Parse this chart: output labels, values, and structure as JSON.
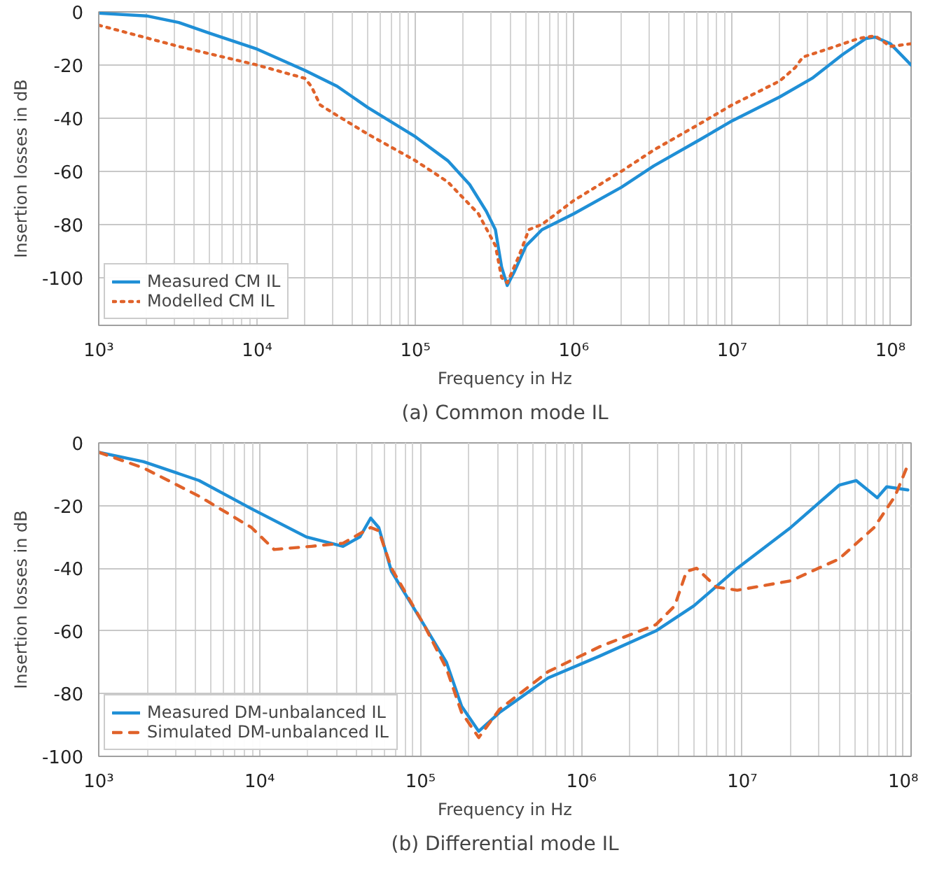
{
  "chart_data": [
    {
      "type": "line",
      "title": "(a) Common mode IL",
      "xlabel": "Frequency in Hz",
      "ylabel": "Insertion losses in dB",
      "log": "x",
      "grid": true,
      "legend": "bottom left",
      "xlim": [
        1000,
        135000000
      ],
      "ylim": [
        -118,
        0
      ],
      "xticks": [
        {
          "value": 1000,
          "label": "10³"
        },
        {
          "value": 10000,
          "label": "10⁴"
        },
        {
          "value": 100000,
          "label": "10⁵"
        },
        {
          "value": 1000000,
          "label": "10⁶"
        },
        {
          "value": 10000000,
          "label": "10⁷"
        },
        {
          "value": 100000000,
          "label": "10⁸"
        }
      ],
      "yticks": [
        0,
        -20,
        -40,
        -60,
        -80,
        -100
      ],
      "series": [
        {
          "name": "Measured CM IL",
          "color": "#1f8fd6",
          "line_style": "solid",
          "x": [
            1000,
            2000,
            3200,
            5000,
            10000,
            20000,
            32000,
            50000,
            100000,
            160000,
            220000,
            280000,
            320000,
            350000,
            380000,
            420000,
            500000,
            630000,
            1000000,
            2000000,
            3200000,
            6300000,
            10000000,
            20000000,
            32000000,
            50000000,
            70000000,
            80000000,
            100000000,
            135000000
          ],
          "values": [
            -0.5,
            -1.5,
            -4,
            -8,
            -14,
            -22,
            -28,
            -36,
            -47,
            -56,
            -65,
            -75,
            -82,
            -96,
            -103,
            -98,
            -88,
            -82,
            -76,
            -66,
            -58,
            -48,
            -41,
            -32,
            -25,
            -16,
            -10,
            -9.5,
            -12,
            -20
          ]
        },
        {
          "name": "Modelled CM IL",
          "color": "#e0622a",
          "line_style": "dotted",
          "x": [
            1000,
            3200,
            10000,
            20000,
            22000,
            25000,
            32000,
            50000,
            100000,
            160000,
            250000,
            320000,
            350000,
            380000,
            450000,
            520000,
            630000,
            1000000,
            2000000,
            3200000,
            6300000,
            10000000,
            20000000,
            25000000,
            28000000,
            40000000,
            63000000,
            80000000,
            100000000,
            135000000
          ],
          "values": [
            -5,
            -13,
            -20,
            -25,
            -28,
            -35,
            -39,
            -46,
            -56,
            -64,
            -76,
            -88,
            -100,
            -102,
            -92,
            -82,
            -80,
            -71,
            -60,
            -52,
            -42,
            -35,
            -26,
            -21,
            -17,
            -14,
            -10,
            -9,
            -13,
            -12
          ]
        }
      ]
    },
    {
      "type": "line",
      "title": "(b) Differential mode IL",
      "xlabel": "Frequency in Hz",
      "ylabel": "Insertion losses in dB",
      "log": "x",
      "grid": true,
      "legend": "bottom left",
      "xlim": [
        1000,
        112000000
      ],
      "ylim": [
        -100,
        0
      ],
      "xticks": [
        {
          "value": 1000,
          "label": "10³"
        },
        {
          "value": 10000,
          "label": "10⁴"
        },
        {
          "value": 100000,
          "label": "10⁵"
        },
        {
          "value": 1000000,
          "label": "10⁶"
        },
        {
          "value": 10000000,
          "label": "10⁷"
        },
        {
          "value": 100000000,
          "label": "10⁸"
        }
      ],
      "yticks": [
        0,
        -20,
        -40,
        -60,
        -80,
        -100
      ],
      "series": [
        {
          "name": "Measured DM-unbalanced IL",
          "color": "#1f8fd6",
          "line_style": "solid",
          "x": [
            1000,
            1900,
            4200,
            8900,
            19500,
            33000,
            42000,
            49000,
            55000,
            66000,
            105000,
            145000,
            180000,
            230000,
            310000,
            620000,
            1300000,
            2900000,
            5000000,
            9300000,
            20000000,
            40000000,
            51000000,
            69000000,
            79000000,
            107000000
          ],
          "values": [
            -3,
            -6,
            -12,
            -21,
            -30,
            -33,
            -30,
            -24,
            -27,
            -41,
            -58,
            -70,
            -84,
            -92,
            -86,
            -75,
            -68,
            -60,
            -52,
            -40,
            -27,
            -13.5,
            -12,
            -17.5,
            -14,
            -15
          ]
        },
        {
          "name": "Simulated DM-unbalanced IL",
          "color": "#e0622a",
          "line_style": "dashed",
          "x": [
            1000,
            1900,
            4200,
            8900,
            12300,
            21000,
            33000,
            49000,
            55000,
            66000,
            105000,
            145000,
            180000,
            230000,
            310000,
            620000,
            1300000,
            2900000,
            3800000,
            4500000,
            5200000,
            6900000,
            9300000,
            20000000,
            40000000,
            66000000,
            89000000,
            107000000
          ],
          "values": [
            -3,
            -8,
            -17,
            -27,
            -34,
            -33,
            -32,
            -27,
            -28,
            -40,
            -58,
            -72,
            -86,
            -94,
            -85,
            -73,
            -65,
            -58,
            -52,
            -41,
            -40,
            -46,
            -47,
            -44,
            -37,
            -27,
            -17,
            -7
          ]
        }
      ]
    }
  ]
}
